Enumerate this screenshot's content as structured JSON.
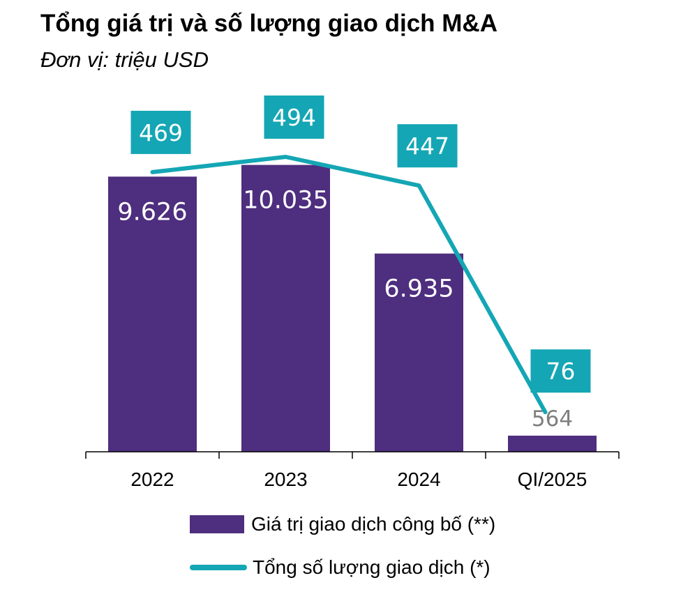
{
  "header": {
    "title": "Tổng giá trị và số lượng giao dịch M&A",
    "subtitle": "Đơn vị: triệu USD"
  },
  "colors": {
    "bar": "#4e2e7e",
    "line": "#14a6b4",
    "bar_label": "#ffffff",
    "small_bar_label": "#7f7f7f"
  },
  "chart_data": {
    "type": "bar",
    "title": "Tổng giá trị và số lượng giao dịch M&A",
    "subtitle": "Đơn vị: triệu USD",
    "categories": [
      "2022",
      "2023",
      "2024",
      "QI/2025"
    ],
    "series": [
      {
        "name": "Giá trị giao dịch công bố (**)",
        "type": "bar",
        "values": [
          9626,
          10035,
          6935,
          564
        ],
        "labels": [
          "9.626",
          "10.035",
          "6.935",
          "564"
        ]
      },
      {
        "name": "Tổng số lượng giao dịch (*)",
        "type": "line",
        "values": [
          469,
          494,
          447,
          76
        ],
        "labels": [
          "469",
          "494",
          "447",
          "76"
        ]
      }
    ],
    "legend": [
      "Giá trị giao dịch công bố (**)",
      "Tổng số lượng giao dịch (*)"
    ],
    "legend_position": "bottom",
    "grid": false
  }
}
